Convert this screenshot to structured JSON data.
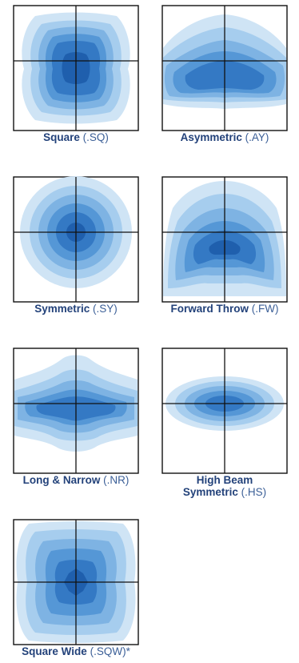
{
  "colors": {
    "l1": "#cfe4f5",
    "l2": "#a6cdee",
    "l3": "#7eb3e3",
    "l4": "#5597d6",
    "l5": "#3479c4",
    "l6": "#1f5fad",
    "axis": "#111111",
    "label": "#23427a"
  },
  "items": [
    {
      "name": "Square",
      "code": "(.SQ)"
    },
    {
      "name": "Asymmetric",
      "code": "(.AY)"
    },
    {
      "name": "Symmetric",
      "code": "(.SY)"
    },
    {
      "name": "Forward Throw",
      "code": "(.FW)"
    },
    {
      "name": "Long & Narrow",
      "code": "(.NR)"
    },
    {
      "name": "High Beam",
      "name2": "Symmetric",
      "code": "(.HS)"
    },
    {
      "name": "Square Wide",
      "code": "(.SQW)*"
    }
  ]
}
